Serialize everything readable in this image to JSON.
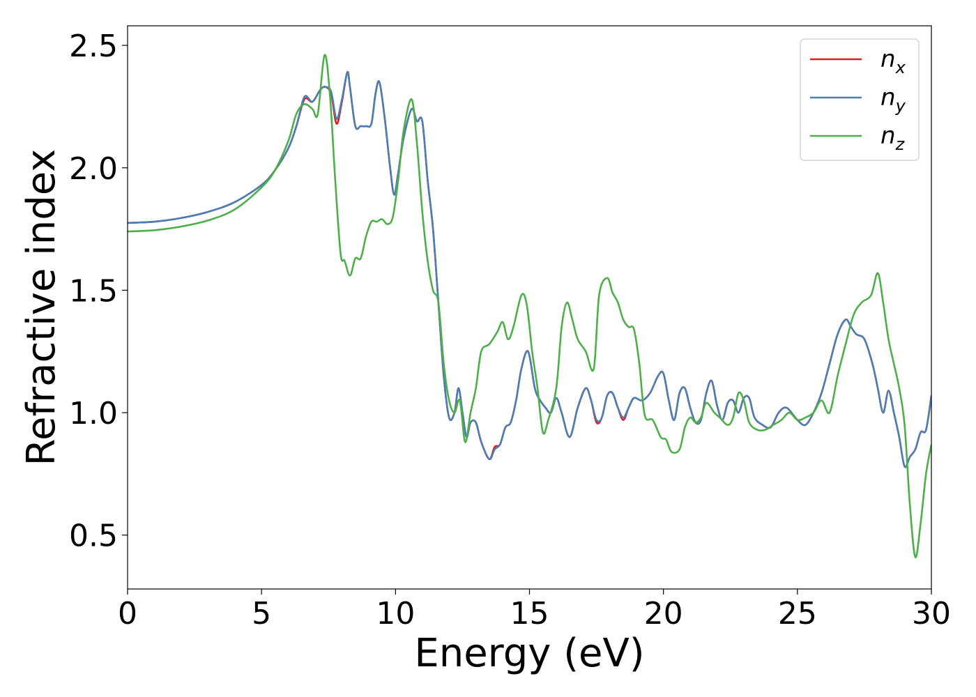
{
  "chart_data": {
    "type": "line",
    "title": "",
    "xlabel": "Energy (eV)",
    "ylabel": "Refractive index",
    "xlim": [
      0,
      30
    ],
    "ylim": [
      0.28,
      2.58
    ],
    "xticks": [
      0,
      5,
      10,
      15,
      20,
      25,
      30
    ],
    "xtick_labels": [
      "0",
      "5",
      "10",
      "15",
      "20",
      "25",
      "30"
    ],
    "yticks": [
      0.5,
      1.0,
      1.5,
      2.0,
      2.5
    ],
    "ytick_labels": [
      "0.5",
      "1.0",
      "1.5",
      "2.0",
      "2.5"
    ],
    "grid": false,
    "legend_position": "top-right",
    "series": [
      {
        "name": "n_x",
        "label_main": "n",
        "label_sub": "x",
        "color": "#e41a1c",
        "x": [
          0,
          1,
          2,
          3,
          4,
          5,
          5.5,
          6,
          6.3,
          6.6,
          6.9,
          7.2,
          7.4,
          7.6,
          7.8,
          8.0,
          8.2,
          8.3,
          8.5,
          8.7,
          8.9,
          9.1,
          9.25,
          9.4,
          9.6,
          9.8,
          9.95,
          10.1,
          10.3,
          10.6,
          10.8,
          11.0,
          11.2,
          11.4,
          11.6,
          11.8,
          12.0,
          12.2,
          12.35,
          12.5,
          12.65,
          12.8,
          13.0,
          13.2,
          13.5,
          13.7,
          13.9,
          14.1,
          14.3,
          14.5,
          14.7,
          14.95,
          15.2,
          15.4,
          15.6,
          15.8,
          16.0,
          16.2,
          16.5,
          16.8,
          17.1,
          17.3,
          17.5,
          17.7,
          17.9,
          18.1,
          18.3,
          18.5,
          18.7,
          18.9,
          19.2,
          19.5,
          19.8,
          20.0,
          20.2,
          20.4,
          20.6,
          20.8,
          21.0,
          21.2,
          21.4,
          21.6,
          21.8,
          22.0,
          22.2,
          22.4,
          22.6,
          22.8,
          23.0,
          23.2,
          23.4,
          23.7,
          24.0,
          24.3,
          24.6,
          25.0,
          25.3,
          25.6,
          25.9,
          26.2,
          26.5,
          26.8,
          27.0,
          27.2,
          27.5,
          27.8,
          28.0,
          28.2,
          28.4,
          28.6,
          28.8,
          29.0,
          29.2,
          29.4,
          29.6,
          29.8,
          30.0
        ],
        "y": [
          1.775,
          1.78,
          1.795,
          1.82,
          1.86,
          1.93,
          1.99,
          2.08,
          2.17,
          2.28,
          2.27,
          2.32,
          2.33,
          2.3,
          2.18,
          2.27,
          2.39,
          2.33,
          2.17,
          2.17,
          2.17,
          2.18,
          2.3,
          2.35,
          2.2,
          2.0,
          1.89,
          1.98,
          2.12,
          2.24,
          2.19,
          2.19,
          1.95,
          1.75,
          1.45,
          1.15,
          0.98,
          1.0,
          1.1,
          1.0,
          0.9,
          0.96,
          0.96,
          0.88,
          0.81,
          0.86,
          0.87,
          0.94,
          0.96,
          1.05,
          1.18,
          1.25,
          1.1,
          1.05,
          1.02,
          1.0,
          1.06,
          1.0,
          0.9,
          1.02,
          1.1,
          1.05,
          0.96,
          0.98,
          1.07,
          1.08,
          1.02,
          0.97,
          1.02,
          1.06,
          1.05,
          1.08,
          1.15,
          1.16,
          1.05,
          0.97,
          1.08,
          1.1,
          1.02,
          0.96,
          0.97,
          1.08,
          1.13,
          1.03,
          0.97,
          1.04,
          1.05,
          1.0,
          1.06,
          1.06,
          0.98,
          0.95,
          0.94,
          1.0,
          1.02,
          0.97,
          0.95,
          1.0,
          1.08,
          1.2,
          1.32,
          1.38,
          1.35,
          1.32,
          1.3,
          1.2,
          1.1,
          1.0,
          1.09,
          1.0,
          0.9,
          0.78,
          0.82,
          0.85,
          0.92,
          0.93,
          1.07
        ]
      },
      {
        "name": "n_y",
        "label_main": "n",
        "label_sub": "y",
        "color": "#4a7fb5",
        "x": [
          0,
          1,
          2,
          3,
          4,
          5,
          5.5,
          6,
          6.3,
          6.6,
          6.9,
          7.2,
          7.4,
          7.6,
          7.8,
          8.0,
          8.2,
          8.3,
          8.5,
          8.7,
          8.9,
          9.1,
          9.25,
          9.4,
          9.6,
          9.8,
          9.95,
          10.1,
          10.3,
          10.6,
          10.8,
          11.0,
          11.2,
          11.4,
          11.6,
          11.8,
          12.0,
          12.2,
          12.35,
          12.5,
          12.65,
          12.8,
          13.0,
          13.2,
          13.5,
          13.7,
          13.9,
          14.1,
          14.3,
          14.5,
          14.7,
          14.95,
          15.2,
          15.4,
          15.6,
          15.8,
          16.0,
          16.2,
          16.5,
          16.8,
          17.1,
          17.3,
          17.5,
          17.7,
          17.9,
          18.1,
          18.3,
          18.5,
          18.7,
          18.9,
          19.2,
          19.5,
          19.8,
          20.0,
          20.2,
          20.4,
          20.6,
          20.8,
          21.0,
          21.2,
          21.4,
          21.6,
          21.8,
          22.0,
          22.2,
          22.4,
          22.6,
          22.8,
          23.0,
          23.2,
          23.4,
          23.7,
          24.0,
          24.3,
          24.6,
          25.0,
          25.3,
          25.6,
          25.9,
          26.2,
          26.5,
          26.8,
          27.0,
          27.2,
          27.5,
          27.8,
          28.0,
          28.2,
          28.4,
          28.6,
          28.8,
          29.0,
          29.2,
          29.4,
          29.6,
          29.8,
          30.0
        ],
        "y": [
          1.775,
          1.78,
          1.795,
          1.82,
          1.86,
          1.93,
          1.99,
          2.08,
          2.17,
          2.29,
          2.27,
          2.32,
          2.33,
          2.31,
          2.2,
          2.28,
          2.39,
          2.33,
          2.17,
          2.17,
          2.17,
          2.18,
          2.3,
          2.35,
          2.2,
          2.0,
          1.89,
          1.98,
          2.12,
          2.24,
          2.19,
          2.19,
          1.95,
          1.75,
          1.45,
          1.15,
          0.98,
          1.0,
          1.1,
          1.0,
          0.9,
          0.96,
          0.96,
          0.88,
          0.81,
          0.85,
          0.87,
          0.94,
          0.96,
          1.05,
          1.18,
          1.25,
          1.1,
          1.05,
          1.02,
          1.0,
          1.06,
          1.0,
          0.9,
          1.02,
          1.1,
          1.05,
          0.97,
          0.98,
          1.07,
          1.08,
          1.02,
          0.98,
          1.02,
          1.06,
          1.05,
          1.08,
          1.15,
          1.16,
          1.05,
          0.97,
          1.08,
          1.1,
          1.02,
          0.96,
          0.97,
          1.08,
          1.13,
          1.03,
          0.97,
          1.04,
          1.05,
          1.0,
          1.06,
          1.06,
          0.98,
          0.95,
          0.94,
          1.0,
          1.02,
          0.97,
          0.95,
          1.0,
          1.08,
          1.2,
          1.32,
          1.38,
          1.35,
          1.32,
          1.3,
          1.2,
          1.1,
          1.0,
          1.09,
          1.0,
          0.9,
          0.78,
          0.82,
          0.85,
          0.92,
          0.93,
          1.07
        ]
      },
      {
        "name": "n_z",
        "label_main": "n",
        "label_sub": "z",
        "color": "#4daf4a",
        "x": [
          0,
          1,
          2,
          3,
          4,
          5,
          5.5,
          6,
          6.3,
          6.6,
          6.9,
          7.1,
          7.35,
          7.55,
          7.75,
          7.95,
          8.1,
          8.3,
          8.5,
          8.7,
          8.9,
          9.1,
          9.3,
          9.5,
          9.7,
          9.9,
          10.1,
          10.3,
          10.6,
          10.8,
          11.0,
          11.2,
          11.4,
          11.6,
          11.8,
          12.0,
          12.2,
          12.4,
          12.6,
          12.8,
          13.0,
          13.2,
          13.5,
          13.8,
          14.0,
          14.2,
          14.4,
          14.7,
          14.9,
          15.1,
          15.3,
          15.5,
          15.7,
          16.0,
          16.2,
          16.4,
          16.6,
          16.8,
          17.1,
          17.4,
          17.6,
          17.9,
          18.1,
          18.3,
          18.5,
          18.7,
          18.9,
          19.1,
          19.3,
          19.6,
          19.9,
          20.1,
          20.3,
          20.6,
          20.8,
          21.0,
          21.2,
          21.4,
          21.6,
          21.9,
          22.1,
          22.4,
          22.6,
          22.8,
          23.0,
          23.2,
          23.5,
          23.8,
          24.1,
          24.4,
          24.7,
          25.0,
          25.3,
          25.6,
          25.9,
          26.2,
          26.5,
          26.8,
          27.1,
          27.4,
          27.75,
          28.0,
          28.2,
          28.4,
          28.6,
          28.8,
          29.0,
          29.2,
          29.4,
          29.6,
          29.8,
          30.0
        ],
        "y": [
          1.74,
          1.745,
          1.76,
          1.785,
          1.83,
          1.92,
          1.99,
          2.11,
          2.22,
          2.26,
          2.24,
          2.22,
          2.46,
          2.3,
          1.95,
          1.65,
          1.62,
          1.56,
          1.63,
          1.63,
          1.72,
          1.78,
          1.78,
          1.79,
          1.77,
          1.8,
          1.95,
          2.15,
          2.28,
          2.1,
          1.82,
          1.62,
          1.5,
          1.45,
          1.2,
          1.05,
          1.0,
          1.05,
          0.88,
          1.0,
          1.1,
          1.25,
          1.28,
          1.33,
          1.37,
          1.3,
          1.35,
          1.48,
          1.44,
          1.25,
          1.1,
          0.92,
          0.97,
          1.1,
          1.35,
          1.45,
          1.38,
          1.3,
          1.25,
          1.18,
          1.48,
          1.55,
          1.49,
          1.45,
          1.38,
          1.35,
          1.34,
          1.2,
          0.99,
          0.97,
          0.9,
          0.89,
          0.84,
          0.85,
          0.94,
          0.98,
          0.96,
          0.98,
          1.04,
          1.0,
          0.98,
          0.95,
          0.98,
          1.08,
          1.05,
          0.96,
          0.93,
          0.93,
          0.95,
          0.97,
          1.0,
          0.97,
          0.98,
          1.0,
          1.05,
          1.0,
          1.15,
          1.28,
          1.4,
          1.45,
          1.48,
          1.57,
          1.45,
          1.3,
          1.2,
          1.1,
          0.95,
          0.62,
          0.41,
          0.55,
          0.75,
          0.87
        ]
      }
    ]
  }
}
